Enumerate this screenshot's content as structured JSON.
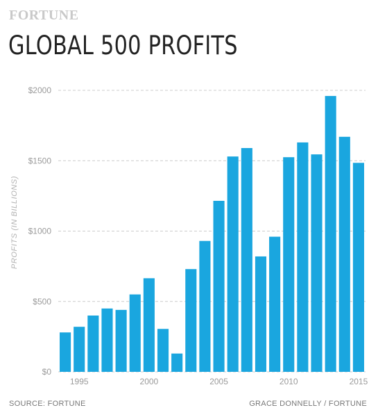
{
  "header": {
    "brand": "FORTUNE",
    "title": "GLOBAL 500 PROFITS"
  },
  "footer": {
    "source": "SOURCE: FORTUNE",
    "credit": "GRACE DONNELLY / FORTUNE"
  },
  "chart_data": {
    "type": "bar",
    "title": "GLOBAL 500 PROFITS",
    "ylabel": "PROFITS (IN BILLIONS)",
    "xlabel": "",
    "categories": [
      1994,
      1995,
      1996,
      1997,
      1998,
      1999,
      2000,
      2001,
      2002,
      2003,
      2004,
      2005,
      2006,
      2007,
      2008,
      2009,
      2010,
      2011,
      2012,
      2013,
      2014,
      2015
    ],
    "values": [
      280,
      320,
      400,
      450,
      440,
      550,
      665,
      305,
      130,
      730,
      930,
      1215,
      1530,
      1590,
      820,
      960,
      1525,
      1630,
      1545,
      1960,
      1670,
      1485
    ],
    "x_tick_labels": [
      "1995",
      "2000",
      "2005",
      "2010",
      "2015"
    ],
    "y_tick_labels": [
      "$0",
      "$500",
      "$1000",
      "$1500",
      "$2000"
    ],
    "ylim": [
      0,
      2000
    ],
    "grid": true,
    "legend": "none",
    "bar_color": "#1aa6df",
    "grid_color": "#cccccc"
  }
}
